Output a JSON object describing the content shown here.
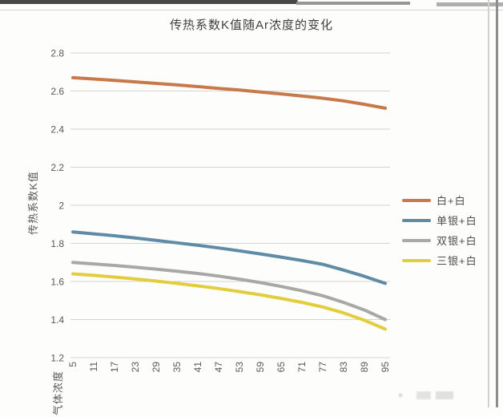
{
  "chart_data": {
    "type": "line",
    "title": "传热系数K值随Ar浓度的变化",
    "xlabel": "气体浓度",
    "ylabel": "传热系数K值",
    "categories": [
      5,
      11,
      17,
      23,
      29,
      35,
      41,
      47,
      53,
      59,
      65,
      71,
      77,
      83,
      89,
      95
    ],
    "series": [
      {
        "name": "白+白",
        "color": "#c8794b",
        "values": [
          2.67,
          2.663,
          2.656,
          2.648,
          2.64,
          2.632,
          2.623,
          2.614,
          2.605,
          2.595,
          2.585,
          2.574,
          2.562,
          2.548,
          2.53,
          2.51
        ]
      },
      {
        "name": "单银+白",
        "color": "#5e8ca6",
        "values": [
          1.86,
          1.85,
          1.84,
          1.828,
          1.816,
          1.803,
          1.79,
          1.776,
          1.761,
          1.745,
          1.728,
          1.71,
          1.69,
          1.66,
          1.627,
          1.59
        ]
      },
      {
        "name": "双银+白",
        "color": "#a8a8a8",
        "values": [
          1.7,
          1.692,
          1.684,
          1.675,
          1.665,
          1.654,
          1.642,
          1.628,
          1.612,
          1.594,
          1.574,
          1.551,
          1.525,
          1.49,
          1.45,
          1.4
        ]
      },
      {
        "name": "三银+白",
        "color": "#e3cd3f",
        "values": [
          1.64,
          1.632,
          1.623,
          1.613,
          1.602,
          1.59,
          1.577,
          1.563,
          1.547,
          1.53,
          1.511,
          1.49,
          1.466,
          1.435,
          1.396,
          1.35
        ]
      }
    ],
    "ylim": [
      1.2,
      2.8
    ],
    "yticks": [
      "2.8",
      "2.6",
      "2.4",
      "2.2",
      "2",
      "1.8",
      "1.6",
      "1.4",
      "1.2"
    ],
    "grid": true,
    "legend_position": "right"
  }
}
